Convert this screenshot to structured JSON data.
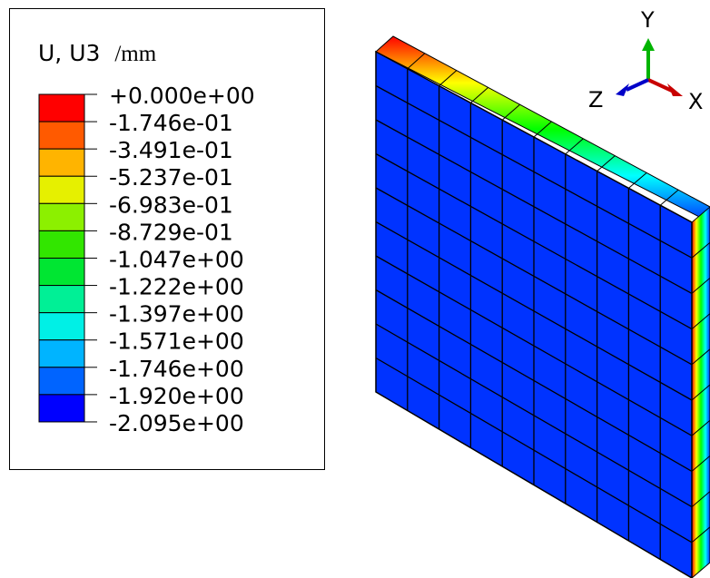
{
  "legend": {
    "title_variable": "U, U3",
    "title_unit": "/mm",
    "ticks": [
      "+0.000e+00",
      "-1.746e-01",
      "-3.491e-01",
      "-5.237e-01",
      "-6.983e-01",
      "-8.729e-01",
      "-1.047e+00",
      "-1.222e+00",
      "-1.397e+00",
      "-1.571e+00",
      "-1.746e+00",
      "-1.920e+00",
      "-2.095e+00"
    ],
    "band_colors": [
      "#ff0000",
      "#ff5a00",
      "#ffb400",
      "#e6f000",
      "#8cf000",
      "#32e600",
      "#00e632",
      "#00f096",
      "#00f0e6",
      "#00b4ff",
      "#0064ff",
      "#0000ff"
    ]
  },
  "triad": {
    "y_label": "Y",
    "x_label": "X",
    "z_label": "Z",
    "y_color": "#00b400",
    "x_color": "#c80000",
    "z_color": "#0000c8"
  },
  "model": {
    "front_color": "#0033ff",
    "mesh_divisions": 10,
    "edge_gradient": [
      "#ff0000",
      "#ffff00",
      "#00ff00",
      "#00ffff",
      "#0033ff"
    ]
  }
}
